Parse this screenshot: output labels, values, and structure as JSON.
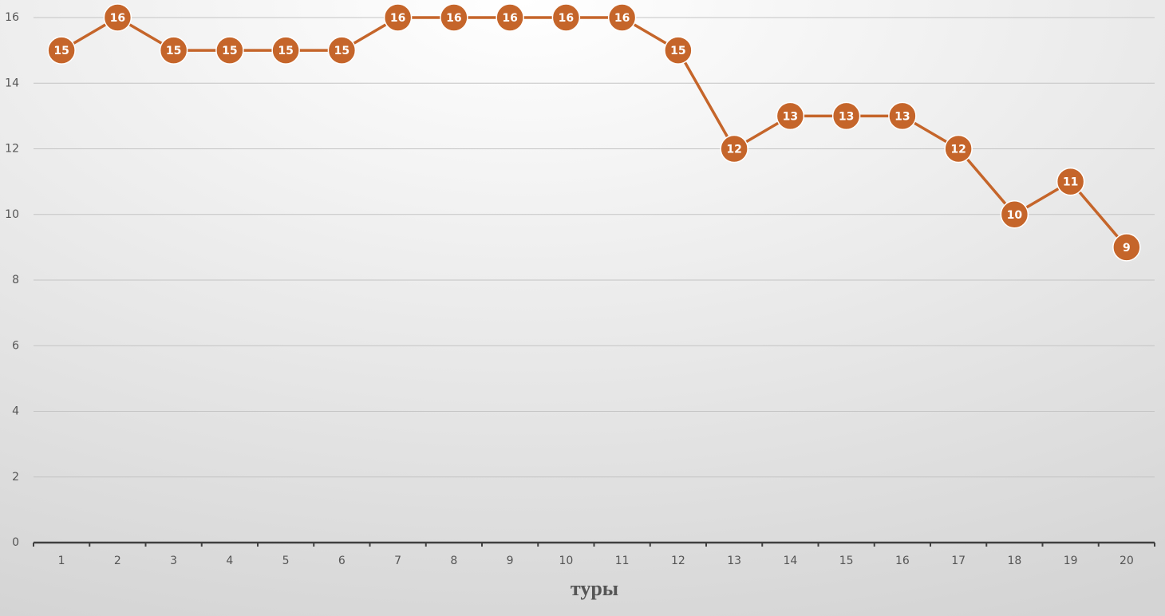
{
  "chart_data": {
    "type": "line",
    "x_label": "туры",
    "categories": [
      "1",
      "2",
      "3",
      "4",
      "5",
      "6",
      "7",
      "8",
      "9",
      "10",
      "11",
      "12",
      "13",
      "14",
      "15",
      "16",
      "17",
      "18",
      "19",
      "20"
    ],
    "values": [
      15,
      16,
      15,
      15,
      15,
      15,
      16,
      16,
      16,
      16,
      16,
      15,
      12,
      13,
      13,
      13,
      12,
      10,
      11,
      9
    ],
    "color": "#c5652a",
    "ylim": [
      0,
      16
    ],
    "yticks": [
      0,
      2,
      4,
      6,
      8,
      10,
      12,
      14,
      16
    ],
    "grid": true
  }
}
